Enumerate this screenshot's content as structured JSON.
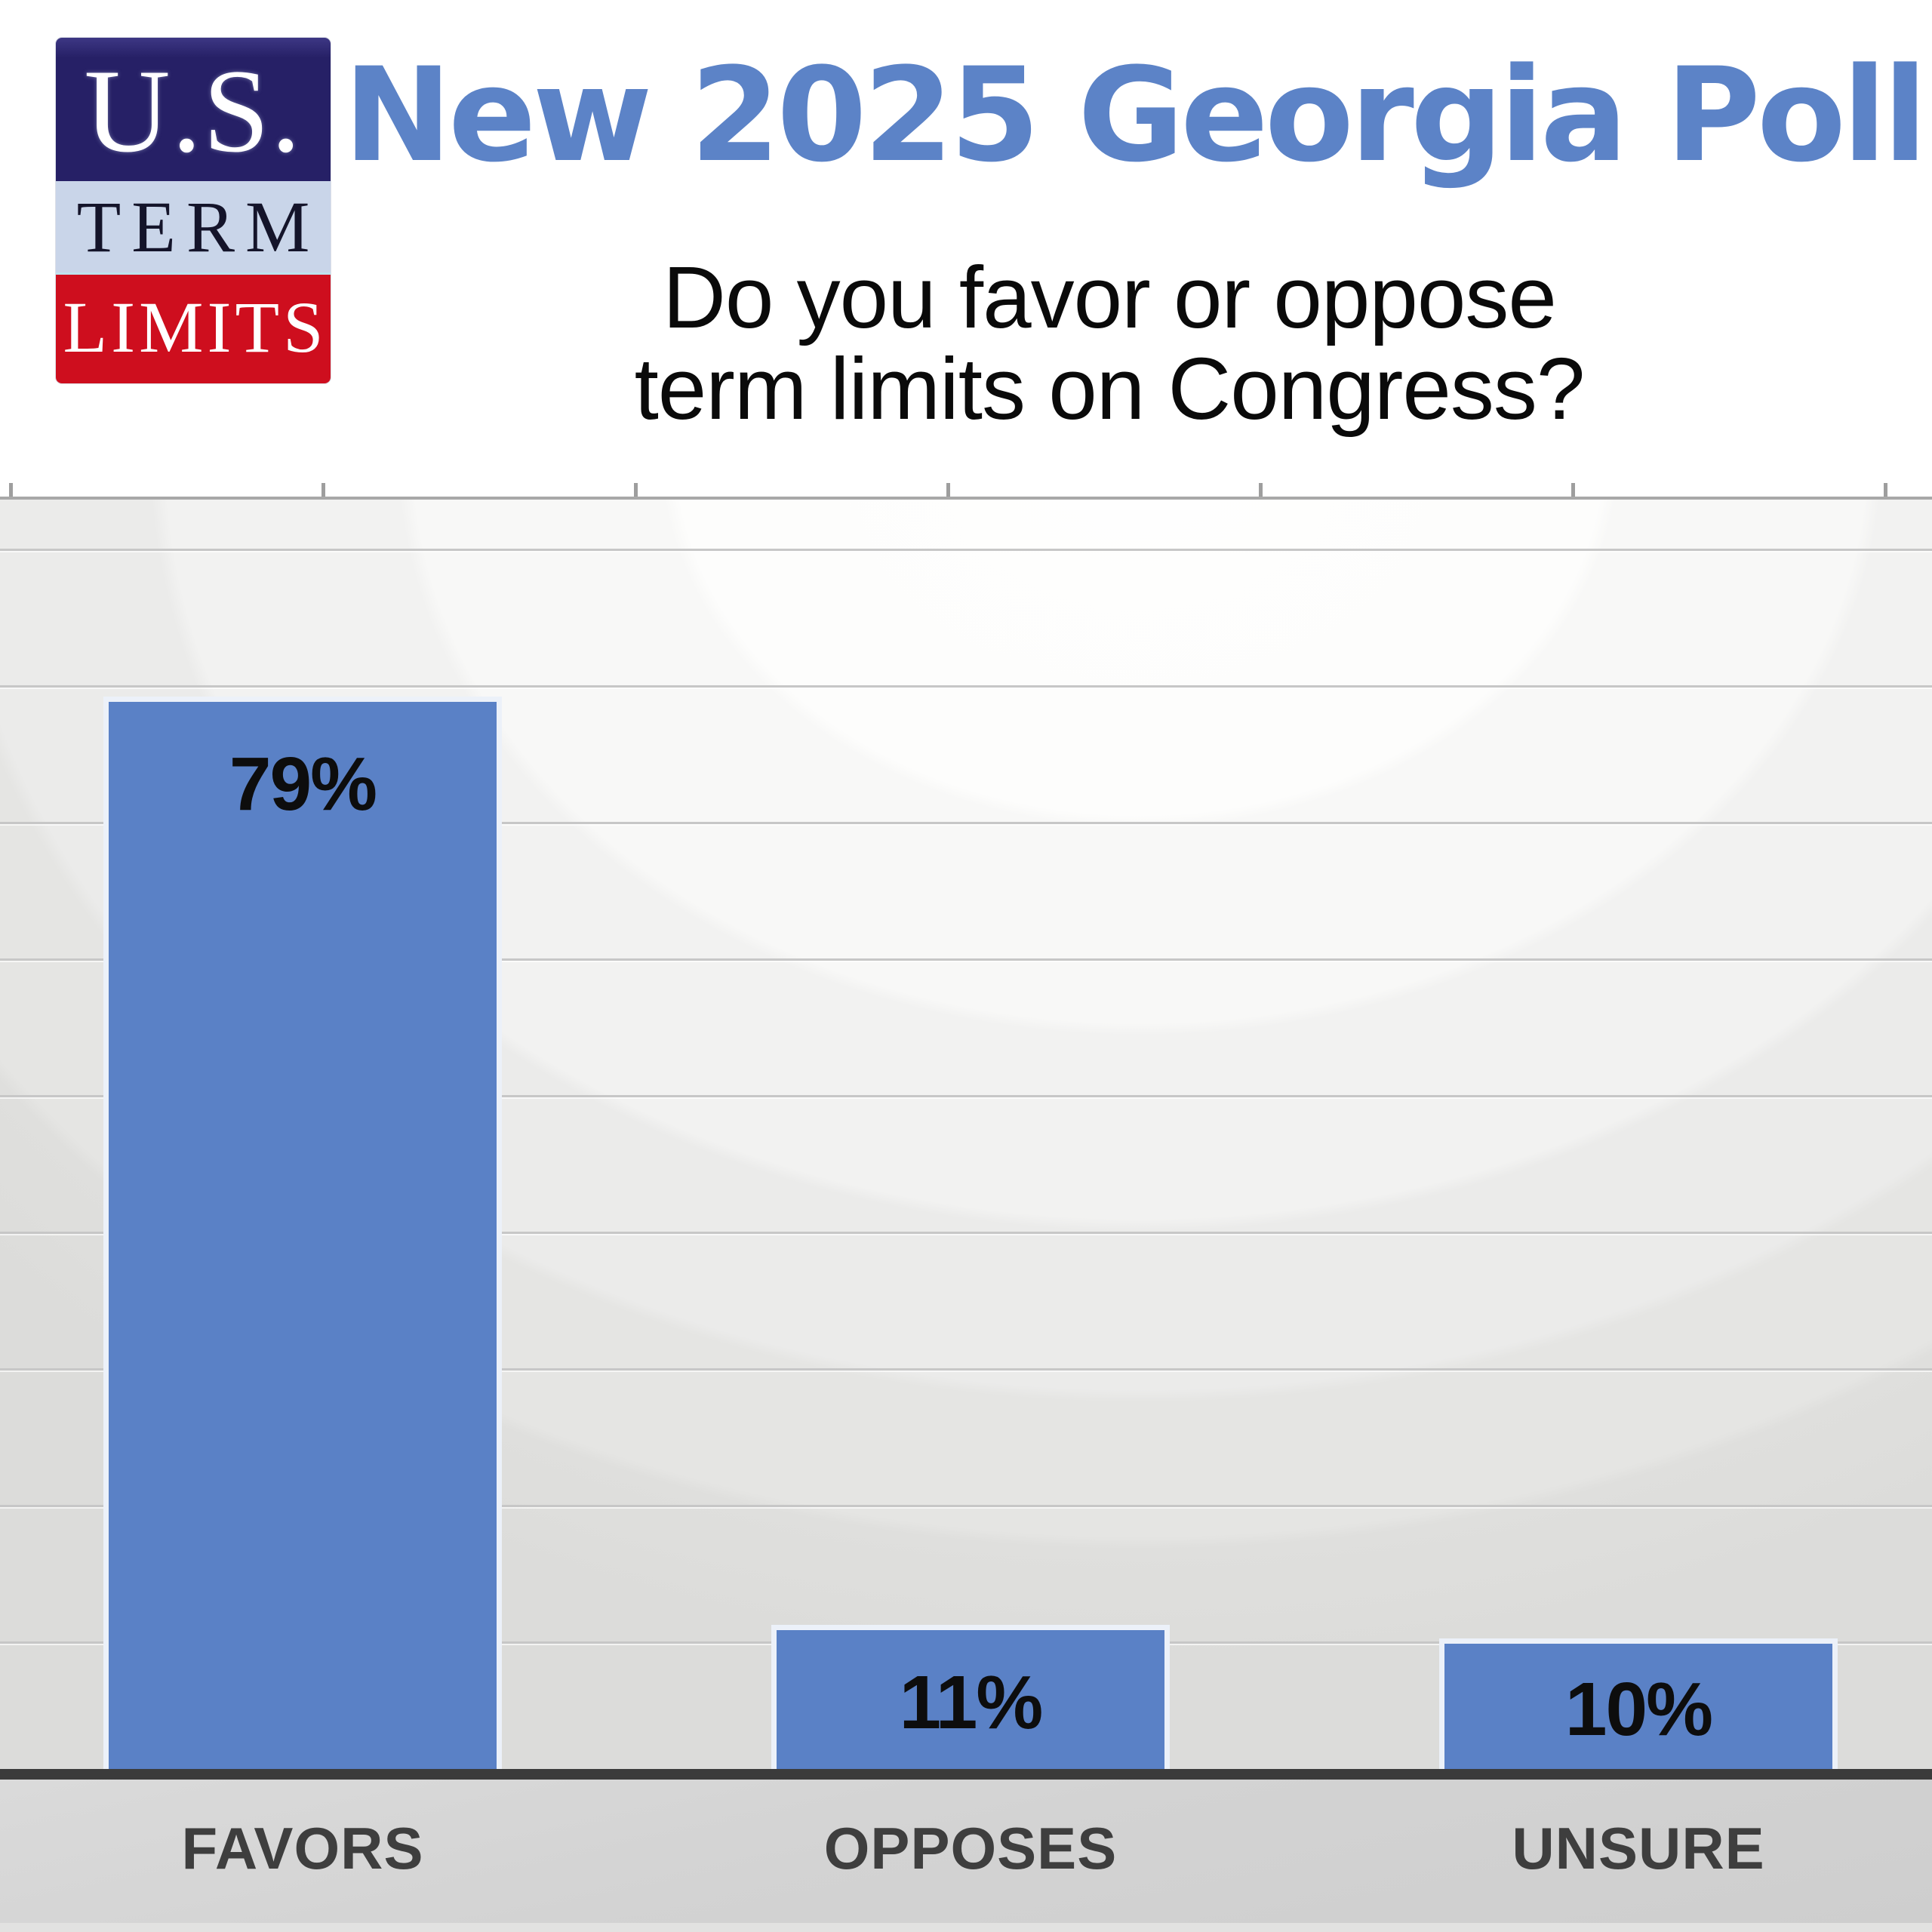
{
  "header": {
    "logo": {
      "line1": "U.S.",
      "line2": "TERM",
      "line3": "LIMITS"
    },
    "title": "New 2025 Georgia Poll",
    "subtitle_line1": "Do you favor or oppose",
    "subtitle_line2": "term limits on Congress?"
  },
  "colors": {
    "title_blue": "#5c83c7",
    "bar_blue": "#5a81c6",
    "logo_navy": "#262066",
    "logo_light_blue": "#c9d5e9",
    "logo_red": "#ce0e1e",
    "grid_line": "#c7c7c7",
    "baseline_dark": "#3b3b3b",
    "strip_gray": "#d4d4d4",
    "value_label_black": "#0d0d0d",
    "category_label_gray": "#3e3e3e"
  },
  "chart_data": {
    "type": "bar",
    "title": "Do you favor or oppose term limits on Congress?",
    "categories": [
      "FAVORS",
      "OPPOSES",
      "UNSURE"
    ],
    "values": [
      79,
      11,
      10
    ],
    "value_labels": [
      "79%",
      "11%",
      "10%"
    ],
    "xlabel": "",
    "ylabel": "",
    "ylim": [
      0,
      94
    ],
    "gridline_interval": 10,
    "grid": true,
    "legend": false,
    "y_tick_labels_visible": false
  }
}
